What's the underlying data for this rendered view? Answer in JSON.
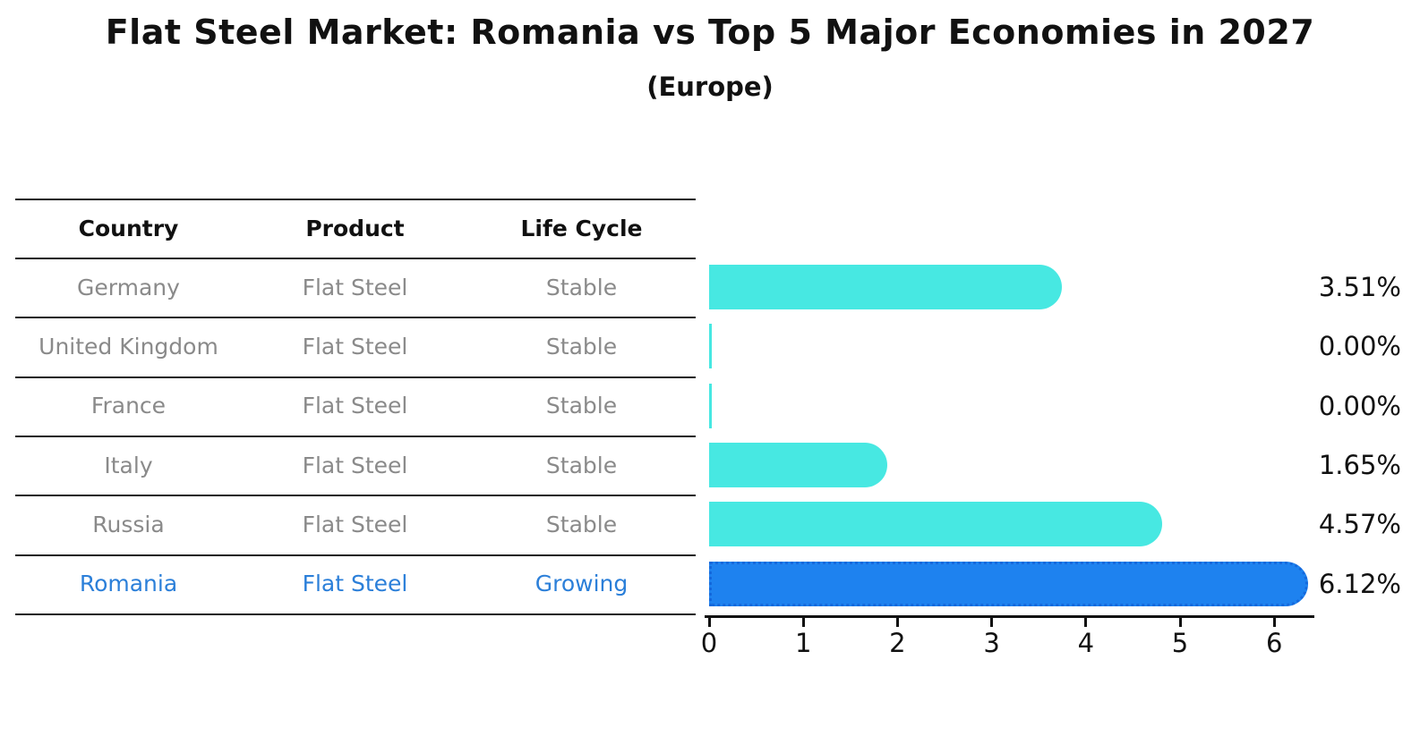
{
  "title": "Flat Steel Market: Romania vs Top 5 Major Economies in 2027",
  "subtitle": "(Europe)",
  "table": {
    "headers": [
      "Country",
      "Product",
      "Life Cycle"
    ],
    "rows": [
      {
        "country": "Germany",
        "product": "Flat Steel",
        "life_cycle": "Stable"
      },
      {
        "country": "United Kingdom",
        "product": "Flat Steel",
        "life_cycle": "Stable"
      },
      {
        "country": "France",
        "product": "Flat Steel",
        "life_cycle": "Stable"
      },
      {
        "country": "Italy",
        "product": "Flat Steel",
        "life_cycle": "Stable"
      },
      {
        "country": "Russia",
        "product": "Flat Steel",
        "life_cycle": "Stable"
      },
      {
        "country": "Romania",
        "product": "Flat Steel",
        "life_cycle": "Growing"
      }
    ]
  },
  "chart_data": {
    "type": "bar",
    "orientation": "horizontal",
    "title": "Flat Steel Market: Romania vs Top 5 Major Economies in 2027",
    "subtitle": "(Europe)",
    "categories": [
      "Germany",
      "United Kingdom",
      "France",
      "Italy",
      "Russia",
      "Romania"
    ],
    "values": [
      3.51,
      0.0,
      0.0,
      1.65,
      4.57,
      6.12
    ],
    "value_labels": [
      "3.51%",
      "0.00%",
      "0.00%",
      "1.65%",
      "4.57%",
      "6.12%"
    ],
    "xticks": [
      0,
      1,
      2,
      3,
      4,
      5,
      6
    ],
    "xlim": [
      0,
      6.4
    ],
    "grid": false,
    "legend": "none",
    "highlight_index": 5,
    "colors": {
      "bar": "#47e8e2",
      "highlight_bar": "#1e82ef",
      "highlight_border": "#1569dc",
      "row_text": "#8a8a8a",
      "highlight_text": "#2b7fd9",
      "text": "#111111"
    }
  }
}
